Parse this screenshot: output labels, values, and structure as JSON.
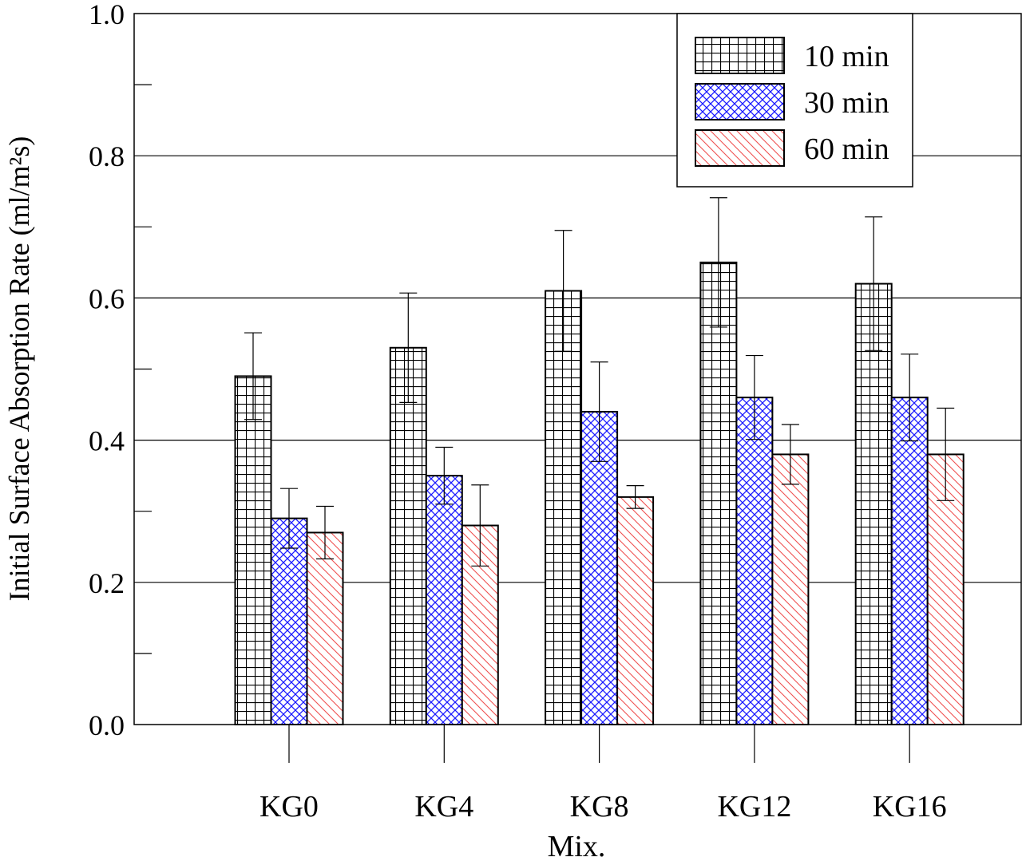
{
  "chart_data": {
    "type": "bar",
    "xlabel": "Mix.",
    "ylabel": "Initial Surface Absorption Rate (ml/m²s)",
    "ylim": [
      0,
      1.0
    ],
    "yticks": [
      "0.0",
      "0.2",
      "0.4",
      "0.6",
      "0.8",
      "1.0"
    ],
    "grid": "horizontal major",
    "legend_position": "top-right",
    "categories": [
      "KG0",
      "KG4",
      "KG8",
      "KG12",
      "KG16"
    ],
    "series": [
      {
        "name": "10 min",
        "color": "#000000",
        "pattern": "square-grid",
        "values": [
          0.49,
          0.53,
          0.61,
          0.65,
          0.62
        ],
        "errors": [
          0.061,
          0.077,
          0.085,
          0.091,
          0.094
        ]
      },
      {
        "name": "30 min",
        "color": "#0000ff",
        "pattern": "diagonal-crosshatch",
        "values": [
          0.29,
          0.35,
          0.44,
          0.46,
          0.46
        ],
        "errors": [
          0.042,
          0.04,
          0.07,
          0.059,
          0.061
        ]
      },
      {
        "name": "60 min",
        "color": "#ff0000",
        "pattern": "diagonal-lines",
        "values": [
          0.27,
          0.28,
          0.32,
          0.38,
          0.38
        ],
        "errors": [
          0.037,
          0.057,
          0.016,
          0.042,
          0.065
        ]
      }
    ]
  }
}
